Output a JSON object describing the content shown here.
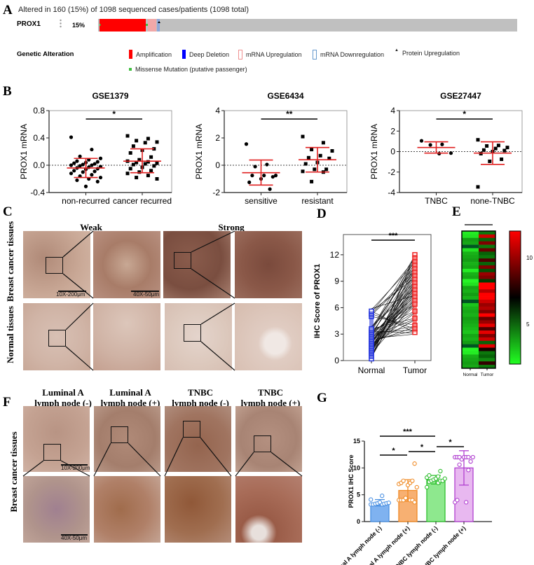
{
  "panels": {
    "A": {
      "label": "A",
      "summary": "Altered in 160 (15%) of 1098 sequenced cases/patients (1098 total)",
      "gene": "PROX1",
      "percent": "15%",
      "legend_title": "Genetic Alteration",
      "legend": [
        {
          "name": "Amplification",
          "color": "#ff0000",
          "shape": "solid"
        },
        {
          "name": "Deep Deletion",
          "color": "#0000ff",
          "shape": "solid"
        },
        {
          "name": "mRNA Upregulation",
          "color": "#ffa0a0",
          "shape": "outline"
        },
        {
          "name": "mRNA Downregulation",
          "color": "#6699cc",
          "shape": "outline"
        },
        {
          "name": "Protein Upregulation",
          "color": "#000000",
          "shape": "triangle"
        },
        {
          "name": "Missense Mutation (putative passenger)",
          "color": "#3fbf3f",
          "shape": "small-square"
        }
      ]
    },
    "B": {
      "label": "B"
    },
    "C": {
      "label": "C",
      "columns": [
        "Weak",
        "Strong"
      ],
      "rows": [
        "Breast cancer tissues",
        "Normal tissues"
      ],
      "scale_low": "10X-200μm",
      "scale_high": "40X-50μm"
    },
    "D": {
      "label": "D"
    },
    "E": {
      "label": "E",
      "sig": "***",
      "xlabels": [
        "Normal",
        "Tumor"
      ],
      "colorbar_ticks": [
        "10",
        "5"
      ]
    },
    "F": {
      "label": "F",
      "columns": [
        {
          "line1": "Luminal A",
          "line2": "lymph node (-)"
        },
        {
          "line1": "Luminal A",
          "line2": "lymph node (+)"
        },
        {
          "line1": "TNBC",
          "line2": "lymph node (-)"
        },
        {
          "line1": "TNBC",
          "line2": "lymph node (+)"
        }
      ],
      "row_label": "Breast cancer tissues",
      "scale_low": "10X-200μm",
      "scale_high": "40X-50μm"
    },
    "G": {
      "label": "G"
    }
  },
  "chart_data": [
    {
      "id": "B1",
      "type": "scatter",
      "title": "GSE1379",
      "ylabel": "PROX1 mRNA",
      "ylim": [
        -0.4,
        0.8
      ],
      "yticks": [
        "0.8",
        "0.4",
        "0.0",
        "-0.4"
      ],
      "categories": [
        "non-recurred",
        "cancer recurred"
      ],
      "significance": "*",
      "series": [
        {
          "name": "non-recurred",
          "marker": "circle",
          "mean": -0.04,
          "sd_upper": 0.1,
          "sd_lower": -0.18,
          "values": [
            0.41,
            0.23,
            0.13,
            0.1,
            0.08,
            0.06,
            0.05,
            0.04,
            0.03,
            0.02,
            0.01,
            0.0,
            0.0,
            -0.01,
            -0.02,
            -0.03,
            -0.04,
            -0.05,
            -0.06,
            -0.08,
            -0.09,
            -0.1,
            -0.12,
            -0.14,
            -0.16,
            -0.18,
            -0.2,
            -0.22,
            -0.24,
            -0.31
          ]
        },
        {
          "name": "cancer recurred",
          "marker": "square",
          "mean": 0.06,
          "sd_upper": 0.24,
          "sd_lower": -0.11,
          "values": [
            0.43,
            0.39,
            0.36,
            0.34,
            0.33,
            0.28,
            0.24,
            0.22,
            0.18,
            0.12,
            0.08,
            0.06,
            0.05,
            0.04,
            0.03,
            0.02,
            0.01,
            -0.01,
            -0.03,
            -0.05,
            -0.08,
            -0.1,
            -0.12,
            -0.15,
            -0.18,
            -0.2
          ]
        }
      ]
    },
    {
      "id": "B2",
      "type": "scatter",
      "title": "GSE6434",
      "ylabel": "PROX1 mRNA",
      "ylim": [
        -2,
        4
      ],
      "yticks": [
        "4",
        "2",
        "0",
        "-2"
      ],
      "categories": [
        "sensitive",
        "resistant"
      ],
      "significance": "**",
      "series": [
        {
          "name": "sensitive",
          "marker": "circle",
          "mean": -0.55,
          "sd_upper": 0.38,
          "sd_lower": -1.45,
          "values": [
            1.55,
            0.05,
            -0.1,
            -0.75,
            -0.75,
            -0.75,
            -0.85,
            -1.0,
            -1.25,
            -1.75
          ]
        },
        {
          "name": "resistant",
          "marker": "square",
          "mean": 0.4,
          "sd_upper": 1.3,
          "sd_lower": -0.5,
          "values": [
            2.1,
            1.65,
            1.15,
            1.05,
            0.7,
            0.55,
            0.5,
            0.2,
            0.1,
            -0.3,
            -0.3,
            -0.45,
            -0.5,
            -1.2
          ]
        }
      ]
    },
    {
      "id": "B3",
      "type": "scatter",
      "title": "GSE27447",
      "ylabel": "PROX1 mRNA",
      "ylim": [
        -4,
        4
      ],
      "yticks": [
        "4",
        "2",
        "0",
        "-2",
        "-4"
      ],
      "categories": [
        "TNBC",
        "none-TNBC"
      ],
      "significance": "*",
      "series": [
        {
          "name": "TNBC",
          "marker": "circle",
          "mean": 0.4,
          "sd_upper": 0.95,
          "sd_lower": -0.15,
          "values": [
            1.05,
            0.7,
            0.65,
            -0.15,
            -0.2
          ]
        },
        {
          "name": "none-TNBC",
          "marker": "square",
          "mean": -0.15,
          "sd_upper": 0.95,
          "sd_lower": -1.25,
          "values": [
            1.15,
            0.6,
            0.55,
            0.4,
            0.3,
            0.15,
            0.1,
            0.0,
            -0.2,
            -0.75,
            -0.95,
            -3.45
          ]
        }
      ]
    },
    {
      "id": "D",
      "type": "line",
      "title": "",
      "ylabel": "IHC Score of PROX1",
      "ylim": [
        0,
        13.5
      ],
      "yticks": [
        "0",
        "3",
        "6",
        "9",
        "12"
      ],
      "categories": [
        "Normal",
        "Tumor"
      ],
      "significance": "***",
      "series": [
        {
          "name": "Normal",
          "color": "#2233dd",
          "values": [
            0.2,
            0.5,
            0.8,
            1.0,
            1.2,
            1.4,
            1.6,
            1.8,
            2.0,
            2.2,
            2.4,
            2.6,
            2.8,
            3.0,
            3.2,
            3.4,
            3.6,
            5.0,
            5.3,
            5.6
          ]
        },
        {
          "name": "Tumor",
          "color": "#ee2222",
          "values": [
            12.0,
            11.6,
            11.2,
            10.8,
            10.4,
            10.0,
            9.6,
            9.2,
            8.8,
            8.4,
            8.0,
            7.6,
            7.2,
            6.8,
            6.4,
            5.6,
            4.8,
            4.0,
            3.6,
            3.2
          ]
        }
      ]
    },
    {
      "id": "E",
      "type": "heatmap",
      "title": "",
      "categories": [
        "Normal",
        "Tumor"
      ],
      "colorbar_range": [
        2,
        12
      ],
      "colorbar_ticks": [
        5,
        10
      ],
      "colorscale": [
        "#22ff22",
        "#000000",
        "#ff0000"
      ],
      "significance": "***"
    },
    {
      "id": "G",
      "type": "bar",
      "title": "",
      "ylabel": "PROX1 IHC Score",
      "ylim": [
        0,
        15
      ],
      "yticks": [
        "0",
        "5",
        "10",
        "15"
      ],
      "categories": [
        "Luminal A lymph node (-)",
        "Luminal A lymph node (+)",
        "TNBC lymph node (-)",
        "TNBC lymph node (+)"
      ],
      "series": [
        {
          "name": "mean",
          "values": [
            3.5,
            5.8,
            7.8,
            10.0
          ]
        }
      ],
      "sd": [
        0.6,
        2.0,
        0.8,
        3.2
      ],
      "colors": [
        "#7fb2f0",
        "#f7b072",
        "#8ee88e",
        "#e8b8f0"
      ],
      "edge_colors": [
        "#4a90e2",
        "#f08a24",
        "#2fbf2f",
        "#b040d0"
      ],
      "points": [
        [
          3.2,
          3.2,
          3.2,
          3.3,
          3.3,
          3.4,
          3.4,
          3.5,
          3.6,
          4.1,
          4.8
        ],
        [
          4.0,
          4.0,
          4.0,
          4.0,
          4.0,
          3.6,
          4.4,
          6.4,
          6.8,
          7.0,
          7.2,
          7.2,
          7.6,
          7.6,
          10.8
        ],
        [
          6.4,
          7.2,
          7.4,
          7.6,
          7.6,
          7.6,
          7.8,
          8.0,
          8.0,
          8.2,
          8.4,
          8.6,
          9.4
        ],
        [
          3.6,
          3.6,
          4.0,
          9.6,
          10.6,
          11.2,
          11.6,
          12.0,
          12.0,
          12.0,
          12.0,
          12.0,
          12.0,
          12.0
        ]
      ],
      "comparisons": [
        {
          "from": 0,
          "to": 1,
          "label": "*"
        },
        {
          "from": 1,
          "to": 2,
          "label": "*"
        },
        {
          "from": 2,
          "to": 3,
          "label": "*"
        },
        {
          "from": 0,
          "to": 2,
          "label": "***"
        }
      ]
    }
  ]
}
